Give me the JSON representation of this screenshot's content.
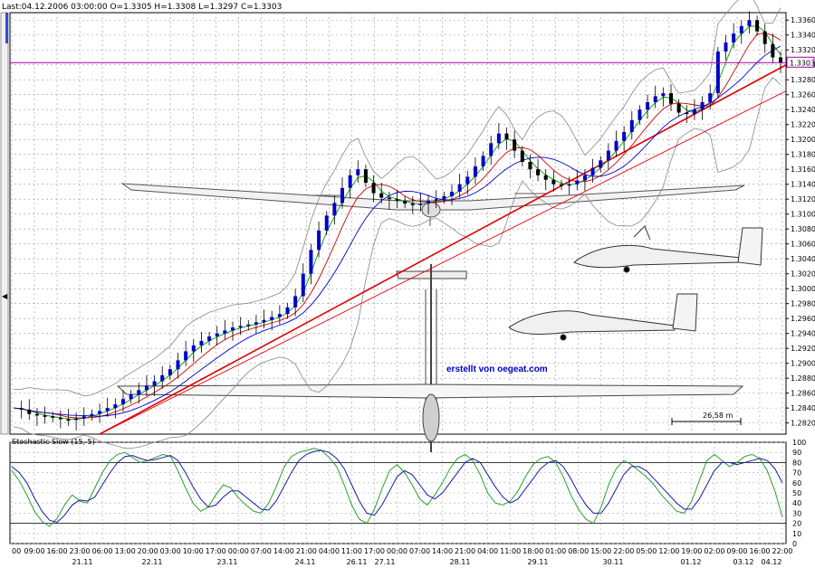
{
  "chart_data": {
    "type": "candlestick",
    "header": "Last:04.12.2006 03:00:00 O=1.3305 H=1.3308 L=1.3297 C=1.3303",
    "last_price_label": "1.3303",
    "last_price": 1.3303,
    "credit": "erstellt von oegeat.com",
    "scale_label": "26,58  m",
    "ylim": [
      1.2805,
      1.337
    ],
    "y_ticks": [
      1.336,
      1.334,
      1.332,
      1.33,
      1.328,
      1.326,
      1.324,
      1.322,
      1.32,
      1.318,
      1.316,
      1.314,
      1.312,
      1.31,
      1.308,
      1.306,
      1.304,
      1.302,
      1.3,
      1.298,
      1.296,
      1.294,
      1.292,
      1.29,
      1.288,
      1.286,
      1.284,
      1.282
    ],
    "y_tick_labels": [
      "1.3360",
      "1.3340",
      "1.3320",
      "1.3300",
      "1.3280",
      "1.3260",
      "1.3240",
      "1.3220",
      "1.3200",
      "1.3180",
      "1.3160",
      "1.3140",
      "1.3120",
      "1.3100",
      "1.3080",
      "1.3060",
      "1.3040",
      "1.3020",
      "1.3000",
      "1.2980",
      "1.2960",
      "1.2940",
      "1.2920",
      "1.2900",
      "1.2880",
      "1.2860",
      "1.2840",
      "1.2820"
    ],
    "close_path": [
      1.284,
      1.2838,
      1.2832,
      1.283,
      1.2829,
      1.2827,
      1.2825,
      1.2824,
      1.2826,
      1.2829,
      1.2832,
      1.2836,
      1.284,
      1.2845,
      1.2852,
      1.2858,
      1.2864,
      1.287,
      1.2876,
      1.2884,
      1.2892,
      1.2904,
      1.2916,
      1.2924,
      1.293,
      1.2936,
      1.294,
      1.2944,
      1.2948,
      1.295,
      1.2952,
      1.2955,
      1.2958,
      1.2962,
      1.2966,
      1.2975,
      1.299,
      1.302,
      1.3052,
      1.3078,
      1.3098,
      1.3115,
      1.3135,
      1.3152,
      1.316,
      1.3142,
      1.3128,
      1.3122,
      1.312,
      1.3118,
      1.3114,
      1.3112,
      1.3114,
      1.3118,
      1.312,
      1.3124,
      1.313,
      1.314,
      1.315,
      1.3164,
      1.3178,
      1.3195,
      1.3208,
      1.32,
      1.3185,
      1.317,
      1.316,
      1.3152,
      1.3146,
      1.314,
      1.3138,
      1.314,
      1.3145,
      1.3152,
      1.3162,
      1.3172,
      1.3185,
      1.3198,
      1.321,
      1.3226,
      1.324,
      1.325,
      1.3258,
      1.3262,
      1.3248,
      1.3236,
      1.3234,
      1.324,
      1.325,
      1.3262,
      1.3318,
      1.333,
      1.3342,
      1.3352,
      1.336,
      1.3345,
      1.3328,
      1.331,
      1.3303
    ],
    "oscillator": {
      "title": "Stochastic Slow (15, 5)",
      "ylim": [
        0,
        100
      ],
      "y_ticks": [
        100,
        90,
        80,
        70,
        60,
        50,
        40,
        30,
        20,
        10,
        0
      ],
      "y_tick_labels": [
        "100",
        "90",
        "80",
        "70",
        "60",
        "50",
        "40",
        "30",
        "20",
        "10",
        "0"
      ],
      "levels": [
        80,
        20
      ],
      "k_line": [
        72,
        62,
        48,
        32,
        22,
        17,
        25,
        38,
        48,
        42,
        40,
        55,
        70,
        82,
        88,
        90,
        85,
        80,
        82,
        85,
        88,
        86,
        72,
        55,
        40,
        32,
        36,
        48,
        58,
        55,
        45,
        38,
        32,
        30,
        40,
        56,
        75,
        86,
        90,
        92,
        94,
        92,
        85,
        76,
        58,
        38,
        24,
        20,
        34,
        54,
        72,
        78,
        70,
        58,
        44,
        38,
        48,
        60,
        74,
        84,
        88,
        82,
        68,
        50,
        40,
        38,
        42,
        52,
        66,
        78,
        84,
        86,
        80,
        66,
        48,
        34,
        24,
        20,
        36,
        58,
        74,
        82,
        78,
        72,
        66,
        58,
        48,
        40,
        32,
        30,
        42,
        62,
        82,
        88,
        82,
        76,
        80,
        86,
        88,
        84,
        72,
        52,
        26
      ],
      "d_line": [
        76,
        70,
        60,
        45,
        32,
        23,
        21,
        28,
        38,
        43,
        42,
        46,
        58,
        70,
        80,
        86,
        87,
        84,
        82,
        83,
        85,
        87,
        82,
        70,
        56,
        44,
        36,
        38,
        46,
        52,
        52,
        46,
        40,
        34,
        33,
        42,
        56,
        70,
        82,
        88,
        91,
        92,
        90,
        84,
        74,
        58,
        42,
        30,
        28,
        38,
        52,
        66,
        72,
        68,
        58,
        48,
        44,
        50,
        60,
        70,
        80,
        84,
        80,
        68,
        56,
        46,
        40,
        44,
        54,
        64,
        74,
        80,
        82,
        76,
        64,
        50,
        38,
        30,
        30,
        40,
        54,
        68,
        76,
        76,
        72,
        64,
        56,
        48,
        40,
        34,
        34,
        44,
        58,
        72,
        80,
        80,
        78,
        80,
        82,
        84,
        82,
        74,
        60
      ]
    },
    "x_tick_labels": [
      "00",
      "09:00",
      "16:00",
      "23:00",
      "06:00",
      "13:00",
      "20:00",
      "03:00",
      "10:00",
      "17:00",
      "00:00",
      "07:00",
      "14:00",
      "21:00",
      "04:00",
      "11:00",
      "17:00",
      "00:00",
      "07:00",
      "14:00",
      "21:00",
      "04:00",
      "11:00",
      "18:00",
      "01:00",
      "08:00",
      "15:00",
      "22:00",
      "05:00",
      "12:00",
      "19:00",
      "02:00",
      "09:00",
      "16:00",
      "22:00"
    ],
    "date_labels": [
      "21.11",
      "22.11",
      "23.11",
      "24.11",
      "26.11",
      "27.11",
      "28.11",
      "29.11",
      "30.11",
      "01.12",
      "03.12",
      "04.12"
    ],
    "colors": {
      "up": "#0000c8",
      "down": "#000000",
      "ma_green": "#009900",
      "ma_red": "#cc0000",
      "ma_blue": "#0000cc",
      "trend": "#e00000",
      "price_line": "#a000a0",
      "k": "#2d9e2d",
      "d": "#1a1aa8"
    }
  }
}
